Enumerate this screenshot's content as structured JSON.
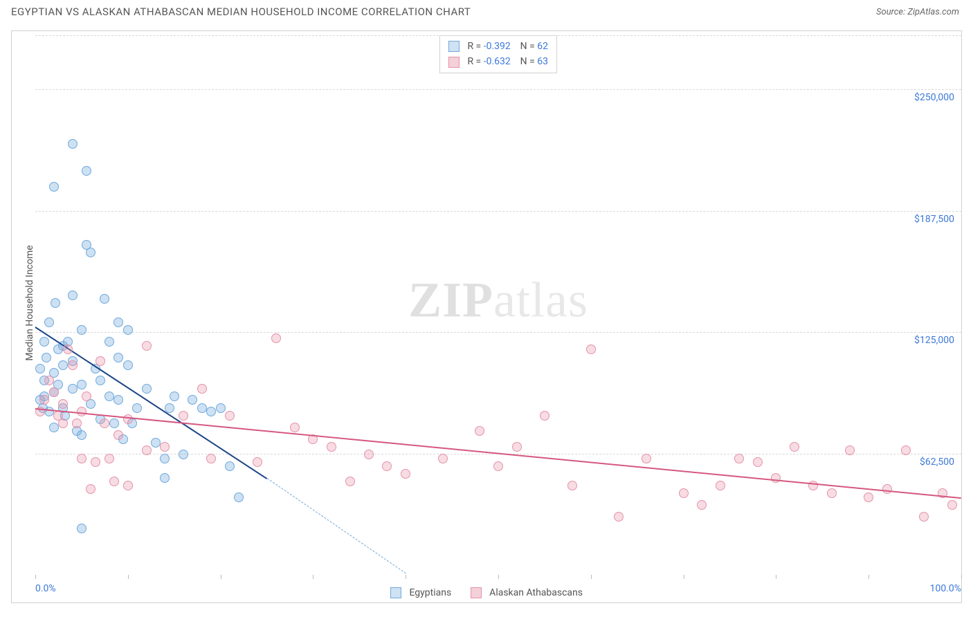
{
  "header": {
    "title": "EGYPTIAN VS ALASKAN ATHABASCAN MEDIAN HOUSEHOLD INCOME CORRELATION CHART",
    "source_label": "Source:",
    "source_name": "ZipAtlas.com"
  },
  "watermark": {
    "bold": "ZIP",
    "light": "atlas"
  },
  "chart": {
    "type": "scatter",
    "ylabel": "Median Household Income",
    "y_min": 0,
    "y_max": 280000,
    "y_ticks": [
      62500,
      125000,
      187500,
      250000
    ],
    "y_tick_labels": [
      "$62,500",
      "$125,000",
      "$187,500",
      "$250,000"
    ],
    "x_min": 0,
    "x_max": 100,
    "x_ticks": [
      0,
      10,
      20,
      30,
      40,
      50,
      60,
      70,
      80,
      90,
      100
    ],
    "x_tick_labels": {
      "0": "0.0%",
      "100": "100.0%"
    },
    "grid_style": "dashed",
    "grid_color": "#d8d8d8",
    "background_color": "#ffffff",
    "marker_radius": 7,
    "marker_fill_opacity": 0.35,
    "series": [
      {
        "key": "egyptians",
        "name": "Egyptians",
        "color_stroke": "#6fa8dc",
        "color_fill": "rgba(111,168,220,0.35)",
        "legend_swatch_fill": "#cfe2f3",
        "legend_swatch_border": "#6fa8dc",
        "stats": {
          "R_label": "R =",
          "R_value": "-0.392",
          "N_label": "N =",
          "N_value": "62"
        },
        "trend": {
          "x1": 0,
          "y1": 128000,
          "x2": 25,
          "y2": 50000,
          "dashed": false,
          "color": "#1c4587",
          "width": 2
        },
        "trend_ext": {
          "x1": 25,
          "y1": 50000,
          "x2": 40,
          "y2": 1000,
          "dashed": true,
          "color": "#6fa8dc",
          "width": 1.5
        },
        "points": [
          [
            0.5,
            90000
          ],
          [
            0.5,
            106000
          ],
          [
            0.8,
            86000
          ],
          [
            1,
            120000
          ],
          [
            1,
            100000
          ],
          [
            1,
            92000
          ],
          [
            1.2,
            112000
          ],
          [
            1.5,
            130000
          ],
          [
            1.5,
            84000
          ],
          [
            2,
            200000
          ],
          [
            2,
            104000
          ],
          [
            2,
            94000
          ],
          [
            2,
            76000
          ],
          [
            2.2,
            140000
          ],
          [
            2.5,
            116000
          ],
          [
            2.5,
            98000
          ],
          [
            3,
            118000
          ],
          [
            3,
            108000
          ],
          [
            3,
            86000
          ],
          [
            3.2,
            82000
          ],
          [
            3.5,
            120000
          ],
          [
            4,
            222000
          ],
          [
            4,
            144000
          ],
          [
            4,
            96000
          ],
          [
            4,
            110000
          ],
          [
            4.5,
            74000
          ],
          [
            5,
            72000
          ],
          [
            5,
            98000
          ],
          [
            5,
            126000
          ],
          [
            5.5,
            208000
          ],
          [
            5.5,
            170000
          ],
          [
            6,
            166000
          ],
          [
            6,
            88000
          ],
          [
            6.5,
            106000
          ],
          [
            7,
            80000
          ],
          [
            7,
            100000
          ],
          [
            7.5,
            142000
          ],
          [
            8,
            120000
          ],
          [
            8,
            92000
          ],
          [
            8.5,
            78000
          ],
          [
            9,
            130000
          ],
          [
            9,
            112000
          ],
          [
            9,
            90000
          ],
          [
            9.5,
            70000
          ],
          [
            10,
            126000
          ],
          [
            10,
            108000
          ],
          [
            10.5,
            78000
          ],
          [
            11,
            86000
          ],
          [
            12,
            96000
          ],
          [
            13,
            68000
          ],
          [
            14,
            60000
          ],
          [
            14.5,
            86000
          ],
          [
            15,
            92000
          ],
          [
            16,
            62000
          ],
          [
            17,
            90000
          ],
          [
            18,
            86000
          ],
          [
            19,
            84000
          ],
          [
            20,
            86000
          ],
          [
            21,
            56000
          ],
          [
            22,
            40000
          ],
          [
            5,
            24000
          ],
          [
            14,
            50000
          ]
        ]
      },
      {
        "key": "alaskan",
        "name": "Alaskan Athabascans",
        "color_stroke": "#e691a8",
        "color_fill": "rgba(230,145,168,0.32)",
        "legend_swatch_fill": "#f4d0d9",
        "legend_swatch_border": "#e691a8",
        "stats": {
          "R_label": "R =",
          "R_value": "-0.632",
          "N_label": "N =",
          "N_value": "63"
        },
        "trend": {
          "x1": 0,
          "y1": 86000,
          "x2": 100,
          "y2": 40000,
          "dashed": false,
          "color": "#d5577f",
          "width": 2
        },
        "points": [
          [
            0.5,
            84000
          ],
          [
            1,
            90000
          ],
          [
            1.5,
            100000
          ],
          [
            2,
            94000
          ],
          [
            2.5,
            82000
          ],
          [
            3,
            78000
          ],
          [
            3,
            88000
          ],
          [
            3.5,
            116000
          ],
          [
            4,
            108000
          ],
          [
            4.5,
            78000
          ],
          [
            5,
            60000
          ],
          [
            5,
            84000
          ],
          [
            5.5,
            92000
          ],
          [
            6,
            44000
          ],
          [
            6.5,
            58000
          ],
          [
            7,
            110000
          ],
          [
            7.5,
            78000
          ],
          [
            8,
            60000
          ],
          [
            8.5,
            48000
          ],
          [
            9,
            72000
          ],
          [
            10,
            46000
          ],
          [
            10,
            80000
          ],
          [
            12,
            64000
          ],
          [
            12,
            118000
          ],
          [
            14,
            66000
          ],
          [
            16,
            82000
          ],
          [
            18,
            96000
          ],
          [
            19,
            60000
          ],
          [
            21,
            82000
          ],
          [
            24,
            58000
          ],
          [
            26,
            122000
          ],
          [
            28,
            76000
          ],
          [
            30,
            70000
          ],
          [
            32,
            66000
          ],
          [
            34,
            48000
          ],
          [
            36,
            62000
          ],
          [
            38,
            56000
          ],
          [
            40,
            52000
          ],
          [
            44,
            60000
          ],
          [
            48,
            74000
          ],
          [
            50,
            56000
          ],
          [
            52,
            66000
          ],
          [
            55,
            82000
          ],
          [
            58,
            46000
          ],
          [
            60,
            116000
          ],
          [
            63,
            30000
          ],
          [
            66,
            60000
          ],
          [
            70,
            42000
          ],
          [
            72,
            36000
          ],
          [
            74,
            46000
          ],
          [
            76,
            60000
          ],
          [
            78,
            58000
          ],
          [
            80,
            50000
          ],
          [
            82,
            66000
          ],
          [
            84,
            46000
          ],
          [
            86,
            42000
          ],
          [
            88,
            64000
          ],
          [
            90,
            40000
          ],
          [
            92,
            44000
          ],
          [
            94,
            64000
          ],
          [
            96,
            30000
          ],
          [
            98,
            42000
          ],
          [
            99,
            36000
          ]
        ]
      }
    ]
  }
}
